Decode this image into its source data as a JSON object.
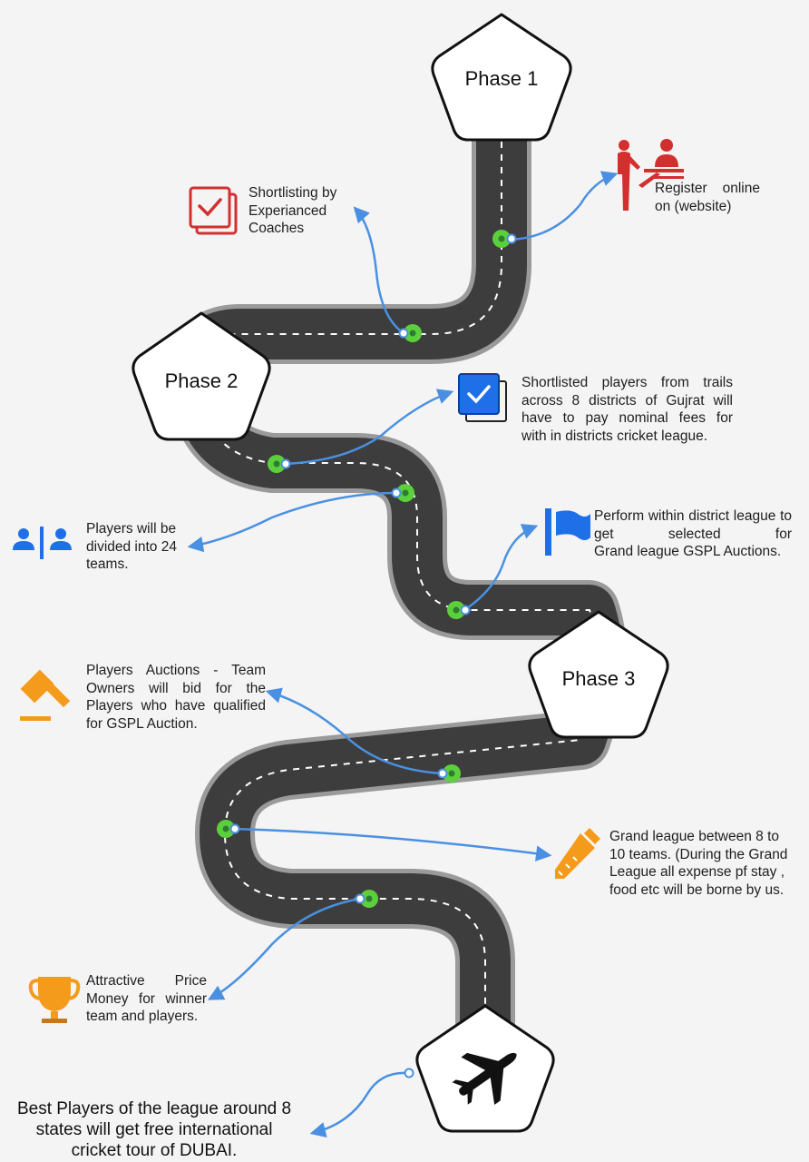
{
  "phases": {
    "phase1": "Phase 1",
    "phase2": "Phase 2",
    "phase3": "Phase 3"
  },
  "steps": {
    "register": {
      "line1": "Register online",
      "line2": "on (website)",
      "icon": "registration-desk-icon",
      "color": "#d32f2f"
    },
    "shortlisting": {
      "line1": "Shortlisting by",
      "line2": "Experianced",
      "line3": "Coaches",
      "icon": "checklist-icon",
      "color": "#d32f2f"
    },
    "fees": {
      "line1": "Shortlisted players  from trails",
      "line2": "across 8 districts of Gujrat will",
      "line3": "have to pay nominal fees for",
      "line4": "with in districts cricket league.",
      "icon": "checkbox-icon",
      "color": "#1e6fe8"
    },
    "teams": {
      "line1": "Players will be",
      "line2": "divided into 24",
      "line3": "teams.",
      "icon": "two-players-icon",
      "color": "#1e6fe8"
    },
    "perform": {
      "line1": "Perform within district",
      "line2": "league to get selected for",
      "line3": "Grand league GSPL Auctions.",
      "icon": "flag-icon",
      "color": "#1e6fe8"
    },
    "auction": {
      "line1": "Players Auctions - Team",
      "line2": "Owners will bid for the",
      "line3": "Players who have qualified",
      "line4": "for GSPL Auction.",
      "icon": "gavel-icon",
      "color": "#f59b1c"
    },
    "grand": {
      "line1": "Grand league between 8 to",
      "line2": "10 teams. (During the Grand",
      "line3": "League all expense pf stay ,",
      "line4": "food etc will be borne by us.",
      "icon": "cricket-bat-icon",
      "color": "#f59b1c"
    },
    "prize": {
      "line1": "Attractive Price",
      "line2": "Money for winner",
      "line3": "team and players.",
      "icon": "trophy-icon",
      "color": "#f59b1c"
    }
  },
  "finale": {
    "line1": "Best Players of the league around 8",
    "line2": "states will get free international",
    "line3": "cricket tour of DUBAI.",
    "icon": "airplane-icon"
  },
  "colors": {
    "road": "#3d3d3d",
    "road_edge": "#9a9a9a",
    "connector": "#4a90e2",
    "marker": "#5ccf3d",
    "background": "#f4f4f4"
  }
}
